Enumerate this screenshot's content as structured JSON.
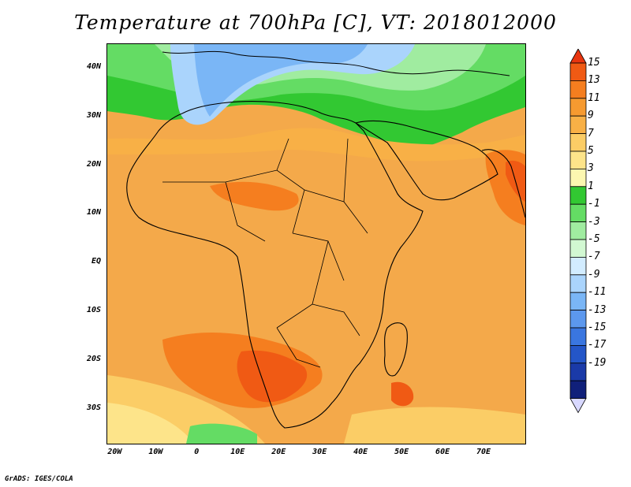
{
  "title": "Temperature at 700hPa [C], VT: 2018012000",
  "credit": "GrADS: IGES/COLA",
  "map": {
    "lon_range": [
      -22,
      80
    ],
    "lat_range": [
      -37,
      45
    ],
    "lat_ticks": [
      {
        "value": 40,
        "label": "40N"
      },
      {
        "value": 30,
        "label": "30N"
      },
      {
        "value": 20,
        "label": "20N"
      },
      {
        "value": 10,
        "label": "10N"
      },
      {
        "value": 0,
        "label": "EQ"
      },
      {
        "value": -10,
        "label": "10S"
      },
      {
        "value": -20,
        "label": "20S"
      },
      {
        "value": -30,
        "label": "30S"
      }
    ],
    "lon_ticks": [
      {
        "value": -20,
        "label": "20W"
      },
      {
        "value": -10,
        "label": "10W"
      },
      {
        "value": 0,
        "label": "0"
      },
      {
        "value": 10,
        "label": "10E"
      },
      {
        "value": 20,
        "label": "20E"
      },
      {
        "value": 30,
        "label": "30E"
      },
      {
        "value": 40,
        "label": "40E"
      },
      {
        "value": 50,
        "label": "50E"
      },
      {
        "value": 60,
        "label": "60E"
      },
      {
        "value": 70,
        "label": "70E"
      }
    ]
  },
  "colorbar": {
    "levels": [
      "15",
      "13",
      "11",
      "9",
      "7",
      "5",
      "3",
      "1",
      "-1",
      "-3",
      "-5",
      "-7",
      "-9",
      "-11",
      "-13",
      "-15",
      "-17",
      "-19"
    ],
    "colors": [
      "#e8350f",
      "#f05a14",
      "#f57e1f",
      "#f69a30",
      "#f8b046",
      "#fbcd66",
      "#fde48a",
      "#fcf7b0",
      "#32c832",
      "#64dc64",
      "#a0eca0",
      "#d2f8d2",
      "#d2ecff",
      "#aad4fc",
      "#7ab6f6",
      "#5c98ee",
      "#3a76e0",
      "#2456c8",
      "#1a3aa8",
      "#10207a",
      "#d8d8ff"
    ]
  }
}
